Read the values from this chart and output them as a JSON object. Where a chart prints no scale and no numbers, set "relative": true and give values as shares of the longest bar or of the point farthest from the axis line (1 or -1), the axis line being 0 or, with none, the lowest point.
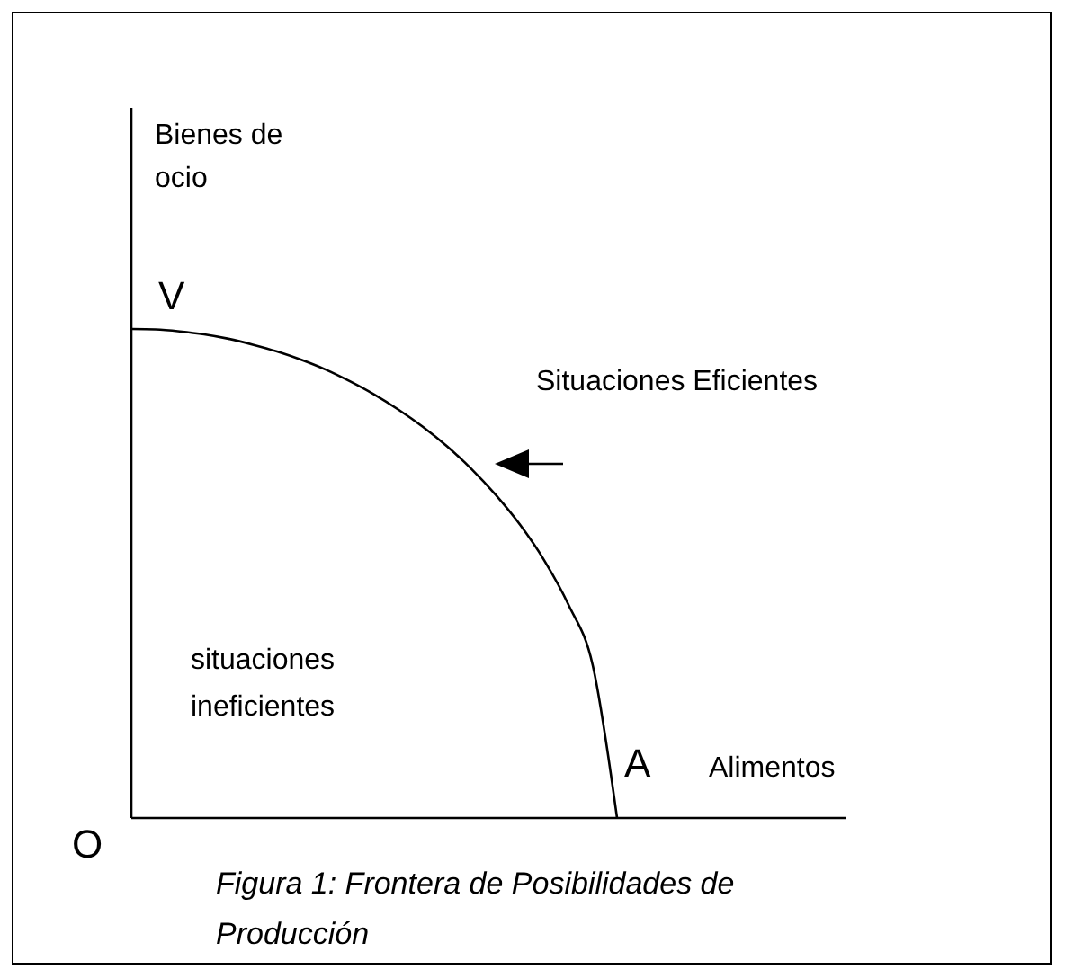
{
  "chart_data": {
    "type": "line",
    "relative": true,
    "xlabel": "Alimentos",
    "ylabel": "Bienes de ocio",
    "color": "#000000",
    "marker": "none",
    "line_style": "solid",
    "categories": [
      null,
      null,
      null,
      null,
      null,
      null,
      null,
      null,
      null,
      null,
      null,
      null,
      null,
      null,
      null,
      null,
      null,
      null,
      null,
      null,
      null,
      null,
      null,
      null,
      null,
      null,
      null,
      null,
      null,
      null
    ],
    "values": [
      1,
      0.999,
      0.995,
      0.989,
      0.98,
      0.968,
      0.954,
      0.937,
      0.917,
      0.893,
      0.866,
      0.835,
      0.8,
      0.76,
      0.714,
      0.661,
      0.6,
      0.527,
      0.436,
      0.312,
      0,
      null,
      null,
      null,
      null,
      null,
      null,
      null,
      null,
      null
    ],
    "annotations": [
      "V",
      "A",
      "O",
      "Situaciones Eficientes",
      "situaciones ineficientes",
      "Figura 1: Frontera de Posibilidades de Producción"
    ]
  }
}
